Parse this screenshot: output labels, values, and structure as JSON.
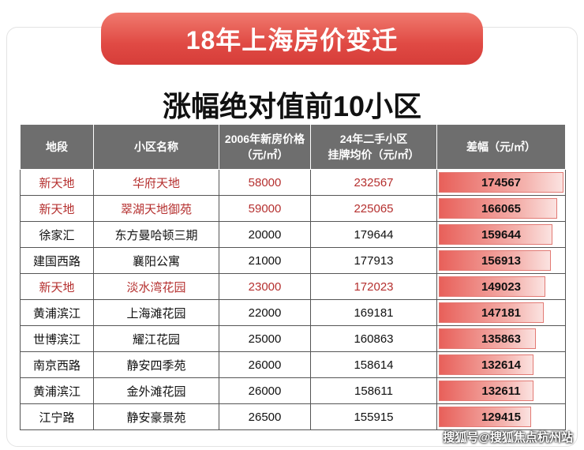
{
  "header": {
    "banner": "18年上海房价变迁",
    "subtitle": "涨幅绝对值前10小区"
  },
  "table": {
    "columns": [
      [
        "地段"
      ],
      [
        "小区名称"
      ],
      [
        "2006年新房价格",
        "（元/㎡）"
      ],
      [
        "24年二手小区",
        "挂牌均价（元/㎡）"
      ],
      [
        "差幅（元/㎡）"
      ]
    ],
    "highlight_rows": [
      0,
      1,
      4
    ],
    "highlight_color": "#b5302f",
    "rows": [
      [
        "新天地",
        "华府天地",
        58000,
        232567,
        174567
      ],
      [
        "新天地",
        "翠湖天地御苑",
        59000,
        225065,
        166065
      ],
      [
        "徐家汇",
        "东方曼哈顿三期",
        20000,
        179644,
        159644
      ],
      [
        "建国西路",
        "襄阳公寓",
        21000,
        177913,
        156913
      ],
      [
        "新天地",
        "淡水湾花园",
        23000,
        172023,
        149023
      ],
      [
        "黄浦滨江",
        "上海滩花园",
        22000,
        169181,
        147181
      ],
      [
        "世博滨江",
        "耀江花园",
        25000,
        160863,
        135863
      ],
      [
        "南京西路",
        "静安四季苑",
        26000,
        158614,
        132614
      ],
      [
        "黄浦滨江",
        "金外滩花园",
        26000,
        158611,
        132611
      ],
      [
        "江宁路",
        "静安豪景苑",
        26500,
        155915,
        129415
      ]
    ]
  },
  "watermark": "搜狐号@搜狐焦点杭州站"
}
